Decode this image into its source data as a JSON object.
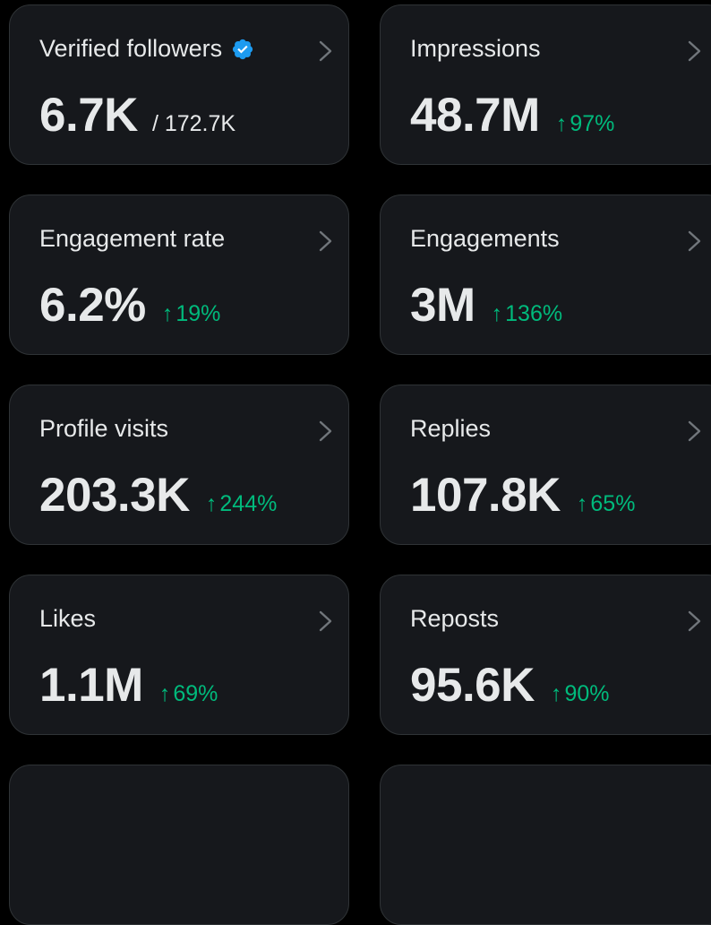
{
  "cards": [
    {
      "title": "Verified followers",
      "value": "6.7K",
      "total": "/ 172.7K",
      "change": "",
      "verified": true
    },
    {
      "title": "Impressions",
      "value": "48.7M",
      "change": "97%"
    },
    {
      "title": "Engagement rate",
      "value": "6.2%",
      "change": "19%"
    },
    {
      "title": "Engagements",
      "value": "3M",
      "change": "136%"
    },
    {
      "title": "Profile visits",
      "value": "203.3K",
      "change": "244%"
    },
    {
      "title": "Replies",
      "value": "107.8K",
      "change": "65%"
    },
    {
      "title": "Likes",
      "value": "1.1M",
      "change": "69%"
    },
    {
      "title": "Reposts",
      "value": "95.6K",
      "change": "90%"
    }
  ],
  "arrow_glyph": "↑",
  "colors": {
    "background": "#000000",
    "card": "#16181c",
    "border": "#2f3336",
    "text": "#e7e9ea",
    "positive": "#00ba7c",
    "verified": "#1d9bf0"
  },
  "icons": {
    "verified": "verified-badge-icon",
    "chevron": "chevron-right-icon"
  }
}
